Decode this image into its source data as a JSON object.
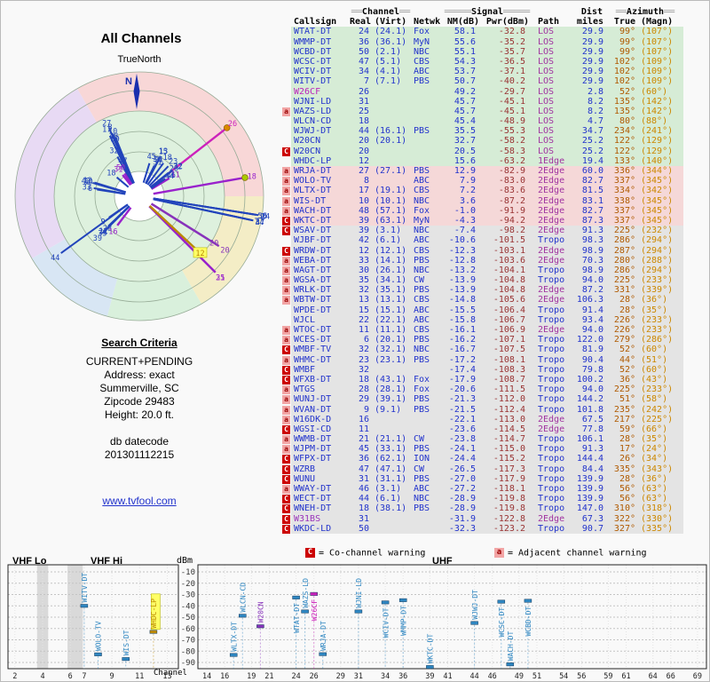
{
  "left_panel": {
    "title": "All Channels",
    "north_label": "TrueNorth",
    "n_symbol": "N",
    "search": {
      "heading": "Search Criteria",
      "lines": [
        "CURRENT+PENDING",
        "Address: exact",
        "Summerville, SC",
        "Zipcode 29483",
        "Height: 20.0 ft."
      ],
      "datecode_label": "db datecode",
      "datecode": "201301112215"
    },
    "link": "www.tvfool.com"
  },
  "table": {
    "h1": {
      "ch_pre": "══",
      "ch": "Channel",
      "ch_post": "══",
      "sig_pre": "═════",
      "sig": "Signal",
      "sig_post": "═════",
      "dist": "Dist",
      "az_pre": "══",
      "az": "Azimuth",
      "az_post": "══"
    },
    "h2": {
      "callsign": "Callsign",
      "real": "Real",
      "virt": "(Virt)",
      "netwk": "Netwk",
      "nm": "NM(dB)",
      "pwr": "Pwr(dBm)",
      "path": "Path",
      "miles": "miles",
      "true": "True",
      "magn": "(Magn)"
    }
  },
  "legend": {
    "c": "C",
    "c_text": "= Co-channel warning",
    "a": "a",
    "a_text": "= Adjacent channel warning"
  },
  "bottom": {
    "dbm": "dBm",
    "channel": "Channel",
    "vhf_lo": "VHF Lo",
    "vhf_hi": "VHF Hi",
    "uhf": "UHF"
  },
  "chart_data": {
    "type": "table",
    "title": "All Channels - TV signal analysis",
    "columns": [
      "Callsign",
      "Real",
      "(Virt)",
      "Netwk",
      "NM(dB)",
      "Pwr(dBm)",
      "Path",
      "miles",
      "True",
      "(Magn)"
    ],
    "rows": [
      {
        "cs": "WTAT-DT",
        "re": 24,
        "vi": "(24.1)",
        "ne": "Fox",
        "nm": 58.1,
        "pw": -32.8,
        "pa": "LOS",
        "mi": 29.9,
        "tr": "99°",
        "mg": "(107°)",
        "tier": "g",
        "fl": ""
      },
      {
        "cs": "WMMP-DT",
        "re": 36,
        "vi": "(36.1)",
        "ne": "MyN",
        "nm": 55.6,
        "pw": -35.2,
        "pa": "LOS",
        "mi": 29.9,
        "tr": "99°",
        "mg": "(107°)",
        "tier": "g",
        "fl": ""
      },
      {
        "cs": "WCBD-DT",
        "re": 50,
        "vi": "(2.1)",
        "ne": "NBC",
        "nm": 55.1,
        "pw": -35.7,
        "pa": "LOS",
        "mi": 29.9,
        "tr": "99°",
        "mg": "(107°)",
        "tier": "g",
        "fl": ""
      },
      {
        "cs": "WCSC-DT",
        "re": 47,
        "vi": "(5.1)",
        "ne": "CBS",
        "nm": 54.3,
        "pw": -36.5,
        "pa": "LOS",
        "mi": 29.9,
        "tr": "102°",
        "mg": "(109°)",
        "tier": "g",
        "fl": ""
      },
      {
        "cs": "WCIV-DT",
        "re": 34,
        "vi": "(4.1)",
        "ne": "ABC",
        "nm": 53.7,
        "pw": -37.1,
        "pa": "LOS",
        "mi": 29.9,
        "tr": "102°",
        "mg": "(109°)",
        "tier": "g",
        "fl": ""
      },
      {
        "cs": "WITV-DT",
        "re": 7,
        "vi": "(7.1)",
        "ne": "PBS",
        "nm": 50.7,
        "pw": -40.2,
        "pa": "LOS",
        "mi": 29.9,
        "tr": "102°",
        "mg": "(109°)",
        "tier": "g",
        "fl": ""
      },
      {
        "cs": "W26CF",
        "re": 26,
        "vi": "",
        "ne": "",
        "nm": 49.2,
        "pw": -29.7,
        "pa": "LOS",
        "mi": 2.8,
        "tr": "52°",
        "mg": "(60°)",
        "tier": "g",
        "fl": "",
        "lp": 1,
        "cc": "#bb22bb",
        "col": "#cc22bb",
        "dot": "#dd8800"
      },
      {
        "cs": "WJNI-LD",
        "re": 31,
        "vi": "",
        "ne": "",
        "nm": 45.7,
        "pw": -45.1,
        "pa": "LOS",
        "mi": 8.2,
        "tr": "135°",
        "mg": "(142°)",
        "tier": "g",
        "fl": "",
        "lp": 1
      },
      {
        "cs": "WAZS-LD",
        "re": 25,
        "vi": "",
        "ne": "",
        "nm": 45.7,
        "pw": -45.1,
        "pa": "LOS",
        "mi": 8.2,
        "tr": "135°",
        "mg": "(142°)",
        "tier": "g",
        "fl": "a",
        "lp": 1
      },
      {
        "cs": "WLCN-CD",
        "re": 18,
        "vi": "",
        "ne": "",
        "nm": 45.4,
        "pw": -48.9,
        "pa": "LOS",
        "mi": 4.7,
        "tr": "80°",
        "mg": "(88°)",
        "tier": "g",
        "fl": "",
        "lp": 1,
        "dot": "#aacc00"
      },
      {
        "cs": "WJWJ-DT",
        "re": 44,
        "vi": "(16.1)",
        "ne": "PBS",
        "nm": 35.5,
        "pw": -55.3,
        "pa": "LOS",
        "mi": 34.7,
        "tr": "234°",
        "mg": "(241°)",
        "tier": "g",
        "fl": ""
      },
      {
        "cs": "W20CN",
        "re": 20,
        "vi": "(20.1)",
        "ne": "",
        "nm": 32.7,
        "pw": -58.2,
        "pa": "LOS",
        "mi": 25.2,
        "tr": "122°",
        "mg": "(129°)",
        "tier": "g",
        "fl": "",
        "lp": 1,
        "col": "#8833bb"
      },
      {
        "cs": "W20CN",
        "re": 20,
        "vi": "",
        "ne": "",
        "nm": 20.5,
        "pw": -58.3,
        "pa": "LOS",
        "mi": 25.2,
        "tr": "122°",
        "mg": "(129°)",
        "tier": "g",
        "fl": "C",
        "lp": 1,
        "col": "#8833bb"
      },
      {
        "cs": "WHDC-LP",
        "re": 12,
        "vi": "",
        "ne": "",
        "nm": 15.6,
        "pw": -63.2,
        "pa": "1Edge",
        "mi": 19.4,
        "tr": "133°",
        "mg": "(140°)",
        "tier": "g",
        "fl": "",
        "lp": 1,
        "col": "#bb8800",
        "hl": 1
      },
      {
        "cs": "WRJA-DT",
        "re": 27,
        "vi": "(27.1)",
        "ne": "PBS",
        "nm": 12.9,
        "pw": -82.9,
        "pa": "2Edge",
        "mi": 60.0,
        "tr": "336°",
        "mg": "(344°)",
        "tier": "p",
        "fl": "a"
      },
      {
        "cs": "WOLO-TV",
        "re": 8,
        "vi": "",
        "ne": "ABC",
        "nm": 7.9,
        "pw": -83.0,
        "pa": "2Edge",
        "mi": 82.7,
        "tr": "337°",
        "mg": "(345°)",
        "tier": "p",
        "fl": "a"
      },
      {
        "cs": "WLTX-DT",
        "re": 17,
        "vi": "(19.1)",
        "ne": "CBS",
        "nm": 7.2,
        "pw": -83.6,
        "pa": "2Edge",
        "mi": 81.5,
        "tr": "334°",
        "mg": "(342°)",
        "tier": "p",
        "fl": "a"
      },
      {
        "cs": "WIS-DT",
        "re": 10,
        "vi": "(10.1)",
        "ne": "NBC",
        "nm": 3.6,
        "pw": -87.2,
        "pa": "2Edge",
        "mi": 83.1,
        "tr": "338°",
        "mg": "(345°)",
        "tier": "p",
        "fl": "a"
      },
      {
        "cs": "WACH-DT",
        "re": 48,
        "vi": "(57.1)",
        "ne": "Fox",
        "nm": -1.0,
        "pw": -91.9,
        "pa": "2Edge",
        "mi": 82.7,
        "tr": "337°",
        "mg": "(345°)",
        "tier": "p",
        "fl": "a"
      },
      {
        "cs": "WKTC-DT",
        "re": 39,
        "vi": "(63.1)",
        "ne": "MyN",
        "nm": -4.3,
        "pw": -94.2,
        "pa": "2Edge",
        "mi": 87.3,
        "tr": "337°",
        "mg": "(345°)",
        "tier": "p",
        "fl": "C"
      },
      {
        "cs": "WSAV-DT",
        "re": 39,
        "vi": "(3.1)",
        "ne": "NBC",
        "nm": -7.4,
        "pw": -98.2,
        "pa": "2Edge",
        "mi": 91.3,
        "tr": "225°",
        "mg": "(232°)",
        "tier": "x",
        "fl": "C"
      },
      {
        "cs": "WJBF-DT",
        "re": 42,
        "vi": "(6.1)",
        "ne": "ABC",
        "nm": -10.6,
        "pw": -101.5,
        "pa": "Tropo",
        "mi": 98.3,
        "tr": "286°",
        "mg": "(294°)",
        "tier": "x",
        "fl": ""
      },
      {
        "cs": "WRDW-DT",
        "re": 12,
        "vi": "(12.1)",
        "ne": "CBS",
        "nm": -12.3,
        "pw": -103.1,
        "pa": "2Edge",
        "mi": 98.9,
        "tr": "287°",
        "mg": "(294°)",
        "tier": "x",
        "fl": "C"
      },
      {
        "cs": "WEBA-DT",
        "re": 33,
        "vi": "(14.1)",
        "ne": "PBS",
        "nm": -12.8,
        "pw": -103.6,
        "pa": "2Edge",
        "mi": 70.3,
        "tr": "280°",
        "mg": "(288°)",
        "tier": "x",
        "fl": "a"
      },
      {
        "cs": "WAGT-DT",
        "re": 30,
        "vi": "(26.1)",
        "ne": "NBC",
        "nm": -13.2,
        "pw": -104.1,
        "pa": "Tropo",
        "mi": 98.9,
        "tr": "286°",
        "mg": "(294°)",
        "tier": "x",
        "fl": "a"
      },
      {
        "cs": "WGSA-DT",
        "re": 35,
        "vi": "(34.1)",
        "ne": "CW",
        "nm": -13.9,
        "pw": -104.8,
        "pa": "Tropo",
        "mi": 94.0,
        "tr": "225°",
        "mg": "(233°)",
        "tier": "x",
        "fl": "a"
      },
      {
        "cs": "WRLK-DT",
        "re": 32,
        "vi": "(35.1)",
        "ne": "PBS",
        "nm": -13.9,
        "pw": -104.8,
        "pa": "2Edge",
        "mi": 87.2,
        "tr": "331°",
        "mg": "(339°)",
        "tier": "x",
        "fl": "a"
      },
      {
        "cs": "WBTW-DT",
        "re": 13,
        "vi": "(13.1)",
        "ne": "CBS",
        "nm": -14.8,
        "pw": -105.6,
        "pa": "2Edge",
        "mi": 106.3,
        "tr": "28°",
        "mg": "(36°)",
        "tier": "x",
        "fl": "a"
      },
      {
        "cs": "WPDE-DT",
        "re": 15,
        "vi": "(15.1)",
        "ne": "ABC",
        "nm": -15.5,
        "pw": -106.4,
        "pa": "Tropo",
        "mi": 91.4,
        "tr": "28°",
        "mg": "(35°)",
        "tier": "x",
        "fl": ""
      },
      {
        "cs": "WJCL",
        "re": 22,
        "vi": "(22.1)",
        "ne": "ABC",
        "nm": -15.8,
        "pw": -106.7,
        "pa": "Tropo",
        "mi": 93.4,
        "tr": "226°",
        "mg": "(233°)",
        "tier": "x",
        "fl": ""
      },
      {
        "cs": "WTOC-DT",
        "re": 11,
        "vi": "(11.1)",
        "ne": "CBS",
        "nm": -16.1,
        "pw": -106.9,
        "pa": "2Edge",
        "mi": 94.0,
        "tr": "226°",
        "mg": "(233°)",
        "tier": "x",
        "fl": "a"
      },
      {
        "cs": "WCES-DT",
        "re": 6,
        "vi": "(20.1)",
        "ne": "PBS",
        "nm": -16.2,
        "pw": -107.1,
        "pa": "Tropo",
        "mi": 122.0,
        "tr": "279°",
        "mg": "(286°)",
        "tier": "x",
        "fl": "a"
      },
      {
        "cs": "WMBF-TV",
        "re": 32,
        "vi": "(32.1)",
        "ne": "NBC",
        "nm": -16.7,
        "pw": -107.5,
        "pa": "Tropo",
        "mi": 81.9,
        "tr": "52°",
        "mg": "(60°)",
        "tier": "x",
        "fl": "C"
      },
      {
        "cs": "WHMC-DT",
        "re": 23,
        "vi": "(23.1)",
        "ne": "PBS",
        "nm": -17.2,
        "pw": -108.1,
        "pa": "Tropo",
        "mi": 90.4,
        "tr": "44°",
        "mg": "(51°)",
        "tier": "x",
        "fl": "a"
      },
      {
        "cs": "WMBF",
        "re": 32,
        "vi": "",
        "ne": "",
        "nm": -17.4,
        "pw": -108.3,
        "pa": "Tropo",
        "mi": 79.8,
        "tr": "52°",
        "mg": "(60°)",
        "tier": "x",
        "fl": "C"
      },
      {
        "cs": "WFXB-DT",
        "re": 18,
        "vi": "(43.1)",
        "ne": "Fox",
        "nm": -17.9,
        "pw": -108.7,
        "pa": "Tropo",
        "mi": 100.2,
        "tr": "36°",
        "mg": "(43°)",
        "tier": "x",
        "fl": "C"
      },
      {
        "cs": "WTGS",
        "re": 28,
        "vi": "(28.1)",
        "ne": "Fox",
        "nm": -20.6,
        "pw": -111.5,
        "pa": "Tropo",
        "mi": 94.0,
        "tr": "225°",
        "mg": "(233°)",
        "tier": "x",
        "fl": "a"
      },
      {
        "cs": "WUNJ-DT",
        "re": 29,
        "vi": "(39.1)",
        "ne": "PBS",
        "nm": -21.3,
        "pw": -112.0,
        "pa": "Tropo",
        "mi": 144.2,
        "tr": "51°",
        "mg": "(58°)",
        "tier": "x",
        "fl": "a"
      },
      {
        "cs": "WVAN-DT",
        "re": 9,
        "vi": "(9.1)",
        "ne": "PBS",
        "nm": -21.5,
        "pw": -112.4,
        "pa": "Tropo",
        "mi": 101.8,
        "tr": "235°",
        "mg": "(242°)",
        "tier": "x",
        "fl": "a"
      },
      {
        "cs": "W16DK-D",
        "re": 16,
        "vi": "",
        "ne": "",
        "nm": -22.1,
        "pw": -113.0,
        "pa": "2Edge",
        "mi": 67.5,
        "tr": "217°",
        "mg": "(225°)",
        "tier": "x",
        "fl": "a",
        "lp": 1
      },
      {
        "cs": "WGSI-CD",
        "re": 11,
        "vi": "",
        "ne": "",
        "nm": -23.6,
        "pw": -114.5,
        "pa": "2Edge",
        "mi": 77.8,
        "tr": "59°",
        "mg": "(66°)",
        "tier": "x",
        "fl": "C",
        "lp": 1
      },
      {
        "cs": "WWMB-DT",
        "re": 21,
        "vi": "(21.1)",
        "ne": "CW",
        "nm": -23.8,
        "pw": -114.7,
        "pa": "Tropo",
        "mi": 106.1,
        "tr": "28°",
        "mg": "(35°)",
        "tier": "x",
        "fl": "a"
      },
      {
        "cs": "WJPM-DT",
        "re": 45,
        "vi": "(33.1)",
        "ne": "PBS",
        "nm": -24.1,
        "pw": -115.0,
        "pa": "Tropo",
        "mi": 91.3,
        "tr": "17°",
        "mg": "(24°)",
        "tier": "x",
        "fl": "a"
      },
      {
        "cs": "WFPX-DT",
        "re": 36,
        "vi": "(62.1)",
        "ne": "ION",
        "nm": -24.4,
        "pw": -115.2,
        "pa": "Tropo",
        "mi": 144.4,
        "tr": "26°",
        "mg": "(34°)",
        "tier": "x",
        "fl": "C"
      },
      {
        "cs": "WZRB",
        "re": 47,
        "vi": "(47.1)",
        "ne": "CW",
        "nm": -26.5,
        "pw": -117.3,
        "pa": "Tropo",
        "mi": 84.4,
        "tr": "335°",
        "mg": "(343°)",
        "tier": "x",
        "fl": "C"
      },
      {
        "cs": "WUNU",
        "re": 31,
        "vi": "(31.1)",
        "ne": "PBS",
        "nm": -27.0,
        "pw": -117.9,
        "pa": "Tropo",
        "mi": 139.9,
        "tr": "28°",
        "mg": "(36°)",
        "tier": "x",
        "fl": "C"
      },
      {
        "cs": "WWAY-DT",
        "re": 46,
        "vi": "(3.1)",
        "ne": "ABC",
        "nm": -27.2,
        "pw": -118.1,
        "pa": "Tropo",
        "mi": 139.9,
        "tr": "56°",
        "mg": "(63°)",
        "tier": "x",
        "fl": "a"
      },
      {
        "cs": "WECT-DT",
        "re": 44,
        "vi": "(6.1)",
        "ne": "NBC",
        "nm": -28.9,
        "pw": -119.8,
        "pa": "Tropo",
        "mi": 139.9,
        "tr": "56°",
        "mg": "(63°)",
        "tier": "x",
        "fl": "C"
      },
      {
        "cs": "WNEH-DT",
        "re": 18,
        "vi": "(38.1)",
        "ne": "PBS",
        "nm": -28.9,
        "pw": -119.8,
        "pa": "Tropo",
        "mi": 147.0,
        "tr": "310°",
        "mg": "(318°)",
        "tier": "x",
        "fl": "C"
      },
      {
        "cs": "W31BS",
        "re": 31,
        "vi": "",
        "ne": "",
        "nm": -31.9,
        "pw": -122.8,
        "pa": "2Edge",
        "mi": 67.3,
        "tr": "322°",
        "mg": "(330°)",
        "tier": "x",
        "fl": "C",
        "lp": 1,
        "cc": "#9933bb"
      },
      {
        "cs": "WKDC-LD",
        "re": 50,
        "vi": "",
        "ne": "",
        "nm": -32.3,
        "pw": -123.2,
        "pa": "Tropo",
        "mi": 90.7,
        "tr": "327°",
        "mg": "(335°)",
        "tier": "x",
        "fl": "C",
        "lp": 1
      }
    ],
    "radar": {
      "title": "All Channels",
      "rings": [
        50,
        73,
        96,
        119,
        140
      ],
      "inner": "#def1de",
      "wedges": [
        {
          "a1": 330,
          "a2": 90,
          "c": "#f8d7d7"
        },
        {
          "a1": 90,
          "a2": 150,
          "c": "#f4edc6"
        },
        {
          "a1": 150,
          "a2": 195,
          "c": "#d9f0dc"
        },
        {
          "a1": 195,
          "a2": 240,
          "c": "#d8e6f4"
        },
        {
          "a1": 240,
          "a2": 330,
          "c": "#e8daf4"
        }
      ]
    },
    "level_plots": {
      "ylabel": "dBm",
      "xlabel": "Channel",
      "dbm_ticks": [
        -10,
        -20,
        -30,
        -40,
        -50,
        -60,
        -70,
        -80,
        -90
      ],
      "vhf_ticks": [
        2,
        4,
        6,
        7,
        9,
        11,
        13
      ],
      "uhf_ticks": [
        14,
        16,
        19,
        21,
        24,
        26,
        29,
        31,
        34,
        36,
        39,
        41,
        44,
        46,
        49,
        51,
        54,
        56,
        59,
        61,
        64,
        66,
        69
      ],
      "vhf_range": [
        1.5,
        13.8
      ],
      "uhf_range": [
        13,
        70
      ],
      "bands": [
        [
          3.6,
          4.4
        ],
        [
          5.8,
          6.9
        ]
      ],
      "min_pwr": -95,
      "ylim": [
        -10,
        -90
      ]
    }
  }
}
